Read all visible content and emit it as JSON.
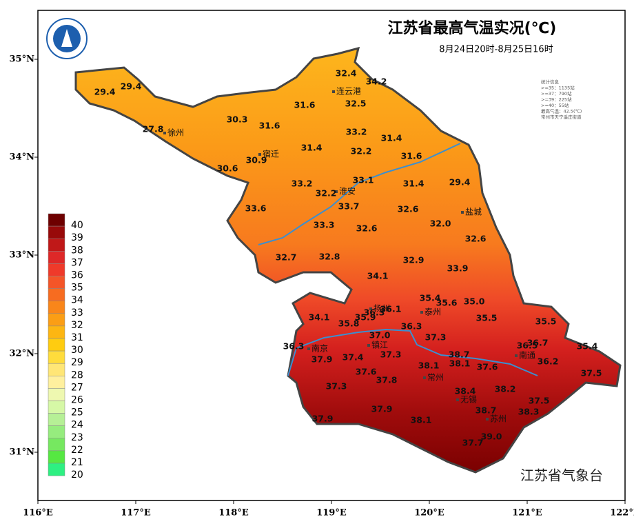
{
  "header": {
    "title": "江苏省最高气温实况(℃)",
    "subtitle": "8月24日20时-8月25日16时"
  },
  "stats": [
    "统计信息",
    ">=35：1135站",
    ">=37：790站",
    ">=39：225站",
    ">=40：55站",
    "最高气温：42.5(℃)",
    "常州市天宁遥庄街道"
  ],
  "axes": {
    "lat": [
      "35°N",
      "34°N",
      "33°N",
      "32°N",
      "31°N"
    ],
    "lon": [
      "116°E",
      "117°E",
      "118°E",
      "119°E",
      "120°E",
      "121°E",
      "122°E"
    ]
  },
  "legend": {
    "labels": [
      "40",
      "39",
      "38",
      "37",
      "36",
      "35",
      "34",
      "33",
      "32",
      "31",
      "30",
      "29",
      "28",
      "27",
      "26",
      "25",
      "24",
      "23",
      "22",
      "21",
      "20"
    ],
    "colors": [
      "#6e0000",
      "#980a0a",
      "#c01818",
      "#de2828",
      "#ef3a2a",
      "#f45528",
      "#f76c20",
      "#f9861a",
      "#fb9e15",
      "#fdb612",
      "#ffcc10",
      "#ffdc3c",
      "#ffe676",
      "#fff09e",
      "#eef8b0",
      "#d6f8a6",
      "#b6f096",
      "#96ec7e",
      "#76e860",
      "#56e842",
      "#2ef082"
    ]
  },
  "cities": [
    "连云港",
    "徐州",
    "宿迁",
    "淮安",
    "盐城",
    "扬州",
    "泰州",
    "南京",
    "镇江",
    "南通",
    "常州",
    "无锡",
    "苏州"
  ],
  "stations": [
    "29.4",
    "29.4",
    "27.8",
    "30.3",
    "31.6",
    "30.6",
    "30.9",
    "31.4",
    "31.6",
    "32.4",
    "34.2",
    "32.5",
    "33.2",
    "32.2",
    "31.4",
    "31.6",
    "33.2",
    "32.2",
    "33.1",
    "33.7",
    "31.4",
    "29.4",
    "33.6",
    "33.3",
    "32.6",
    "32.6",
    "32.0",
    "32.6",
    "32.7",
    "32.8",
    "32.9",
    "33.9",
    "34.1",
    "35.4",
    "35.6",
    "35.0",
    "36.1",
    "36.3",
    "35.9",
    "34.1",
    "35.8",
    "35.5",
    "35.5",
    "36.3",
    "37.3",
    "37.0",
    "36.3",
    "36.5",
    "36.7",
    "35.4",
    "37.9",
    "37.4",
    "37.3",
    "38.7",
    "38.1",
    "38.1",
    "37.6",
    "36.2",
    "37.5",
    "37.6",
    "37.8",
    "37.3",
    "38.4",
    "38.2",
    "37.5",
    "38.7",
    "38.3",
    "37.9",
    "37.9",
    "38.1",
    "39.0",
    "37.7"
  ],
  "footer": "江苏省气象台"
}
